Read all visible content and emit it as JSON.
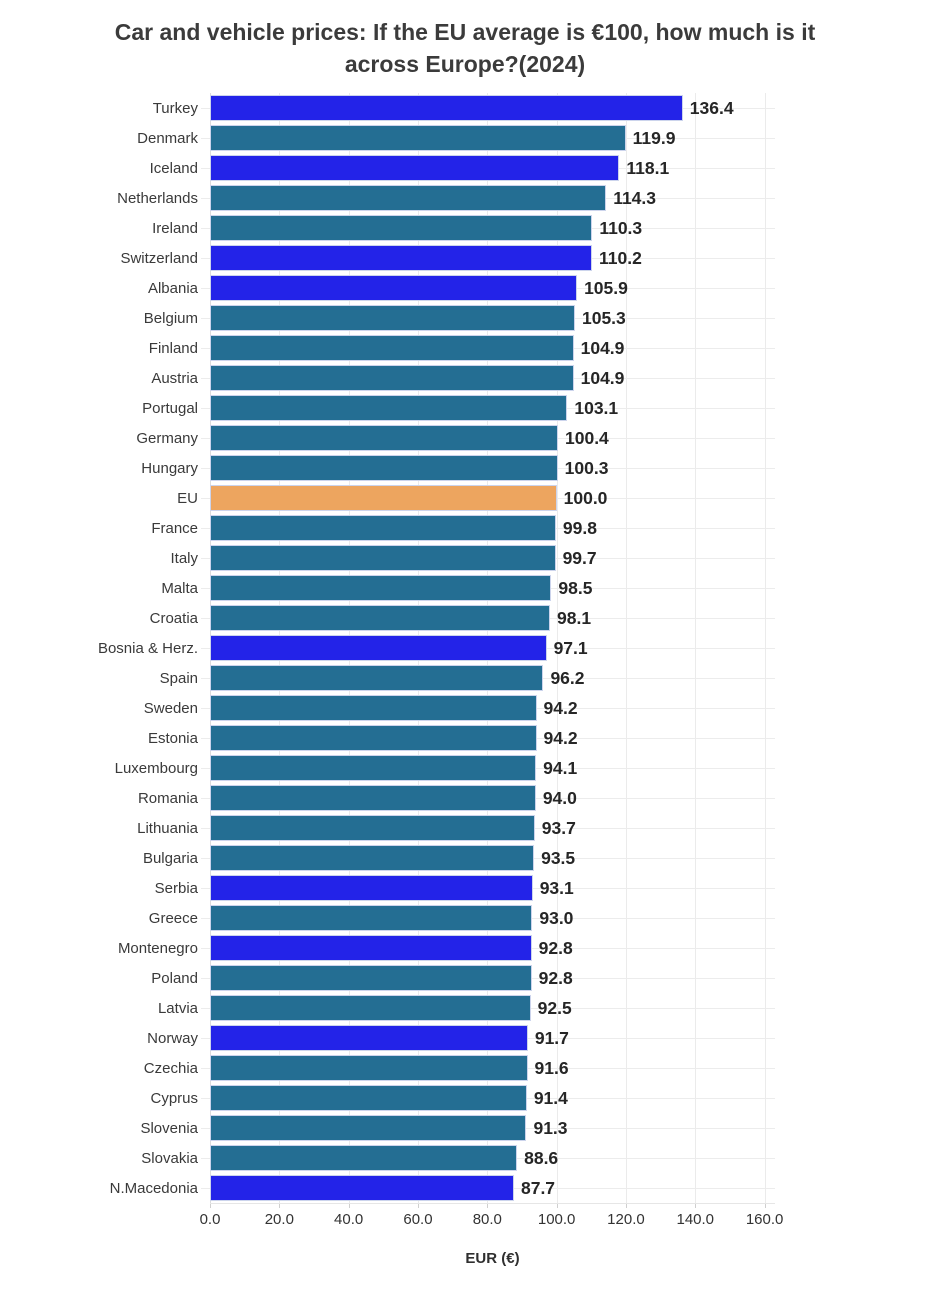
{
  "chart_data": {
    "type": "bar",
    "orientation": "horizontal",
    "title": "Car and vehicle prices: If the EU average is €100, how much is it across Europe?(2024)",
    "xlabel": "EUR (€)",
    "xlim": [
      0,
      163
    ],
    "xtick_values": [
      0,
      20,
      40,
      60,
      80,
      100,
      120,
      140,
      160
    ],
    "xtick_labels": [
      "0.0",
      "20.0",
      "40.0",
      "60.0",
      "80.0",
      "100.0",
      "120.0",
      "140.0",
      "160.0"
    ],
    "grid": true,
    "legend_position": "none",
    "value_decimals": 1,
    "colors": {
      "eu_member": "#246e93",
      "non_eu_country": "#2323e8",
      "eu_average": "#eda55f"
    },
    "bars": [
      {
        "label": "Turkey",
        "value": 136.4,
        "group": "non_eu_country"
      },
      {
        "label": "Denmark",
        "value": 119.9,
        "group": "eu_member"
      },
      {
        "label": "Iceland",
        "value": 118.1,
        "group": "non_eu_country"
      },
      {
        "label": "Netherlands",
        "value": 114.3,
        "group": "eu_member"
      },
      {
        "label": "Ireland",
        "value": 110.3,
        "group": "eu_member"
      },
      {
        "label": "Switzerland",
        "value": 110.2,
        "group": "non_eu_country"
      },
      {
        "label": "Albania",
        "value": 105.9,
        "group": "non_eu_country"
      },
      {
        "label": "Belgium",
        "value": 105.3,
        "group": "eu_member"
      },
      {
        "label": "Finland",
        "value": 104.9,
        "group": "eu_member"
      },
      {
        "label": "Austria",
        "value": 104.9,
        "group": "eu_member"
      },
      {
        "label": "Portugal",
        "value": 103.1,
        "group": "eu_member"
      },
      {
        "label": "Germany",
        "value": 100.4,
        "group": "eu_member"
      },
      {
        "label": "Hungary",
        "value": 100.3,
        "group": "eu_member"
      },
      {
        "label": "EU",
        "value": 100.0,
        "group": "eu_average"
      },
      {
        "label": "France",
        "value": 99.8,
        "group": "eu_member"
      },
      {
        "label": "Italy",
        "value": 99.7,
        "group": "eu_member"
      },
      {
        "label": "Malta",
        "value": 98.5,
        "group": "eu_member"
      },
      {
        "label": "Croatia",
        "value": 98.1,
        "group": "eu_member"
      },
      {
        "label": "Bosnia & Herz.",
        "value": 97.1,
        "group": "non_eu_country"
      },
      {
        "label": "Spain",
        "value": 96.2,
        "group": "eu_member"
      },
      {
        "label": "Sweden",
        "value": 94.2,
        "group": "eu_member"
      },
      {
        "label": "Estonia",
        "value": 94.2,
        "group": "eu_member"
      },
      {
        "label": "Luxembourg",
        "value": 94.1,
        "group": "eu_member"
      },
      {
        "label": "Romania",
        "value": 94.0,
        "group": "eu_member"
      },
      {
        "label": "Lithuania",
        "value": 93.7,
        "group": "eu_member"
      },
      {
        "label": "Bulgaria",
        "value": 93.5,
        "group": "eu_member"
      },
      {
        "label": "Serbia",
        "value": 93.1,
        "group": "non_eu_country"
      },
      {
        "label": "Greece",
        "value": 93.0,
        "group": "eu_member"
      },
      {
        "label": "Montenegro",
        "value": 92.8,
        "group": "non_eu_country"
      },
      {
        "label": "Poland",
        "value": 92.8,
        "group": "eu_member"
      },
      {
        "label": "Latvia",
        "value": 92.5,
        "group": "eu_member"
      },
      {
        "label": "Norway",
        "value": 91.7,
        "group": "non_eu_country"
      },
      {
        "label": "Czechia",
        "value": 91.6,
        "group": "eu_member"
      },
      {
        "label": "Cyprus",
        "value": 91.4,
        "group": "eu_member"
      },
      {
        "label": "Slovenia",
        "value": 91.3,
        "group": "eu_member"
      },
      {
        "label": "Slovakia",
        "value": 88.6,
        "group": "eu_member"
      },
      {
        "label": "N.Macedonia",
        "value": 87.7,
        "group": "non_eu_country"
      }
    ]
  }
}
